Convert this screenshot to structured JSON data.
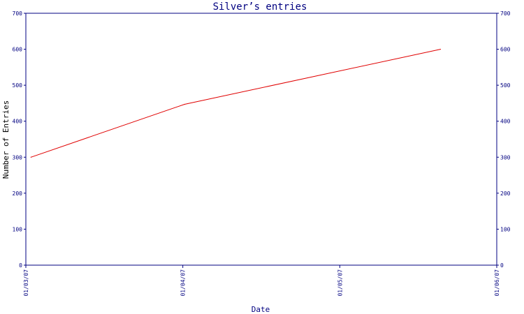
{
  "chart_data": {
    "type": "line",
    "title": "Silver’s entries",
    "xlabel": "Date",
    "ylabel": "Number of Entries",
    "x_ticks": [
      "01/03/07",
      "01/04/07",
      "01/05/07",
      "01/06/07"
    ],
    "x_domain": [
      "2007-03-01",
      "2007-06-01"
    ],
    "ylim": [
      0,
      700
    ],
    "y_ticks": [
      0,
      100,
      200,
      300,
      400,
      500,
      600,
      700
    ],
    "y_ticks_right": true,
    "grid": false,
    "series": [
      {
        "x": [
          "2007-03-02",
          "2007-04-01",
          "2007-05-21"
        ],
        "y": [
          300,
          447,
          600
        ]
      }
    ],
    "colors": {
      "series": "#e00000",
      "axes": "#000080",
      "text": "#000080"
    }
  }
}
